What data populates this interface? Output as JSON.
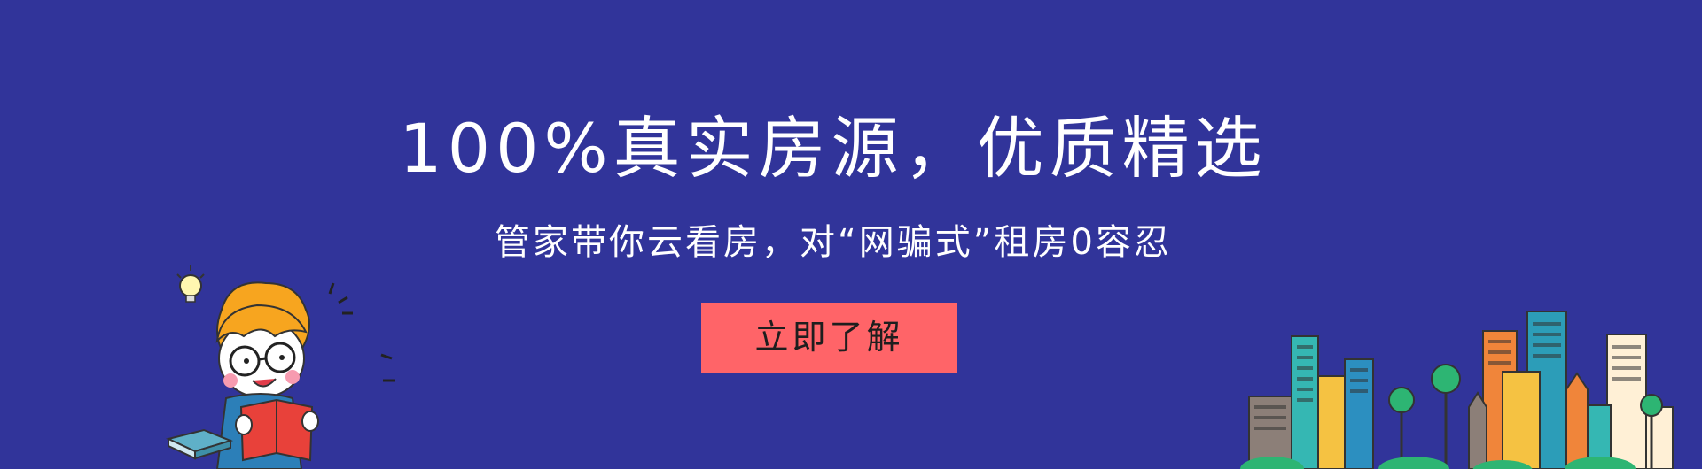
{
  "banner": {
    "headline": "100%真实房源，优质精选",
    "subheadline": "管家带你云看房，对“网骗式”租房0容忍",
    "cta_label": "立即了解"
  },
  "colors": {
    "background": "#31349A",
    "cta_background": "#FF6468",
    "text": "#FFFFFF"
  },
  "icons": [
    "lightbulb-icon",
    "reading-boy-illustration",
    "book-icon",
    "city-buildings-illustration",
    "tree-icon"
  ]
}
